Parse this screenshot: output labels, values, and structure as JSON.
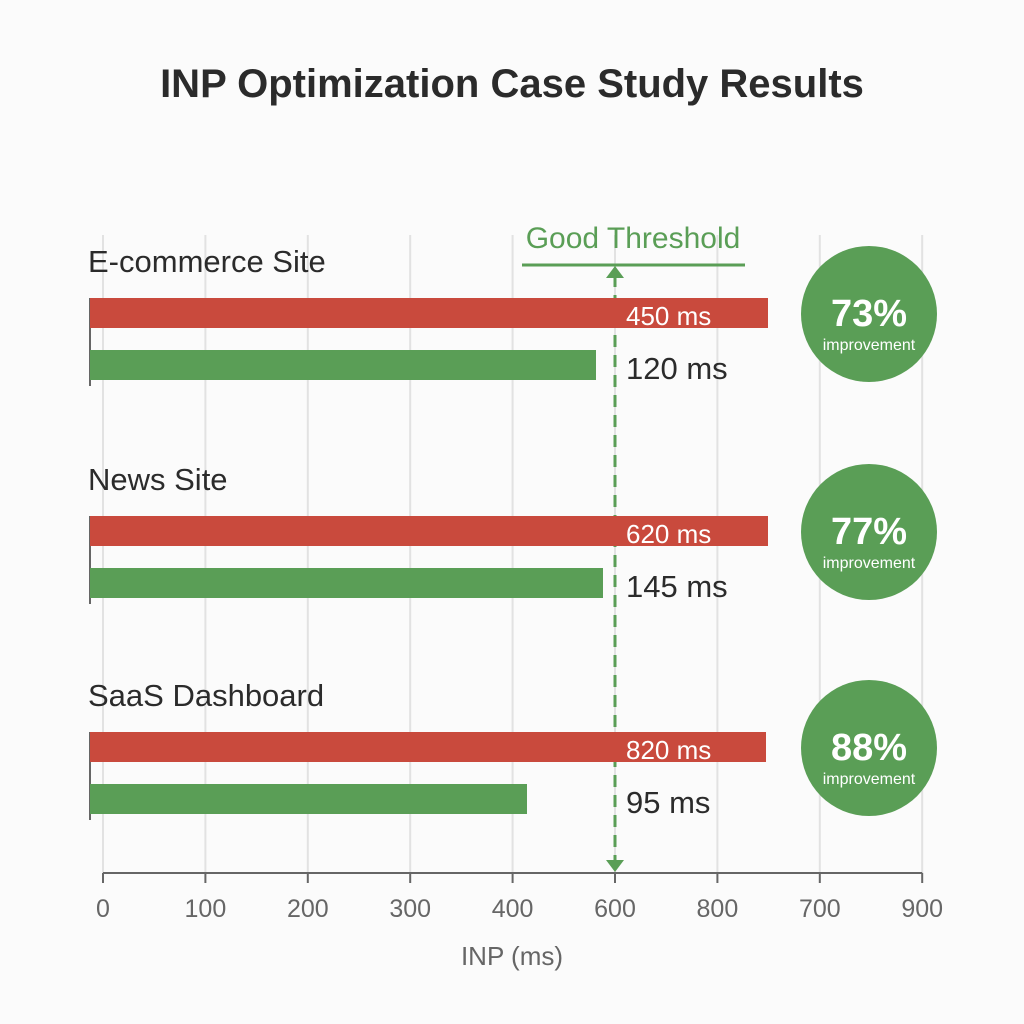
{
  "chart_data": {
    "type": "bar",
    "title": "INP Optimization Case Study Results",
    "xlabel": "INP (ms)",
    "x_tick_labels": [
      "0",
      "100",
      "200",
      "300",
      "400",
      "600",
      "800",
      "700",
      "900"
    ],
    "grid": true,
    "threshold": {
      "label": "Good Threshold",
      "value": 600
    },
    "categories": [
      "E-commerce Site",
      "News Site",
      "SaaS Dashboard"
    ],
    "series": [
      {
        "values": [
          450,
          620,
          820
        ],
        "labels": [
          "450 ms",
          "620 ms",
          "820 ms"
        ],
        "color": "#c94a3d"
      },
      {
        "values": [
          120,
          145,
          95
        ],
        "labels": [
          "120 ms",
          "145 ms",
          "95 ms"
        ],
        "color": "#5a9e56"
      }
    ],
    "improvements": [
      {
        "value": "73%",
        "text": "improvement"
      },
      {
        "value": "77%",
        "text": "improvement"
      },
      {
        "value": "88%",
        "text": "improvement"
      }
    ],
    "colors": {
      "accent": "#5a9e56",
      "before": "#c94a3d",
      "after": "#5a9e56",
      "text": "#2b2b2b",
      "axis": "#666666"
    }
  }
}
